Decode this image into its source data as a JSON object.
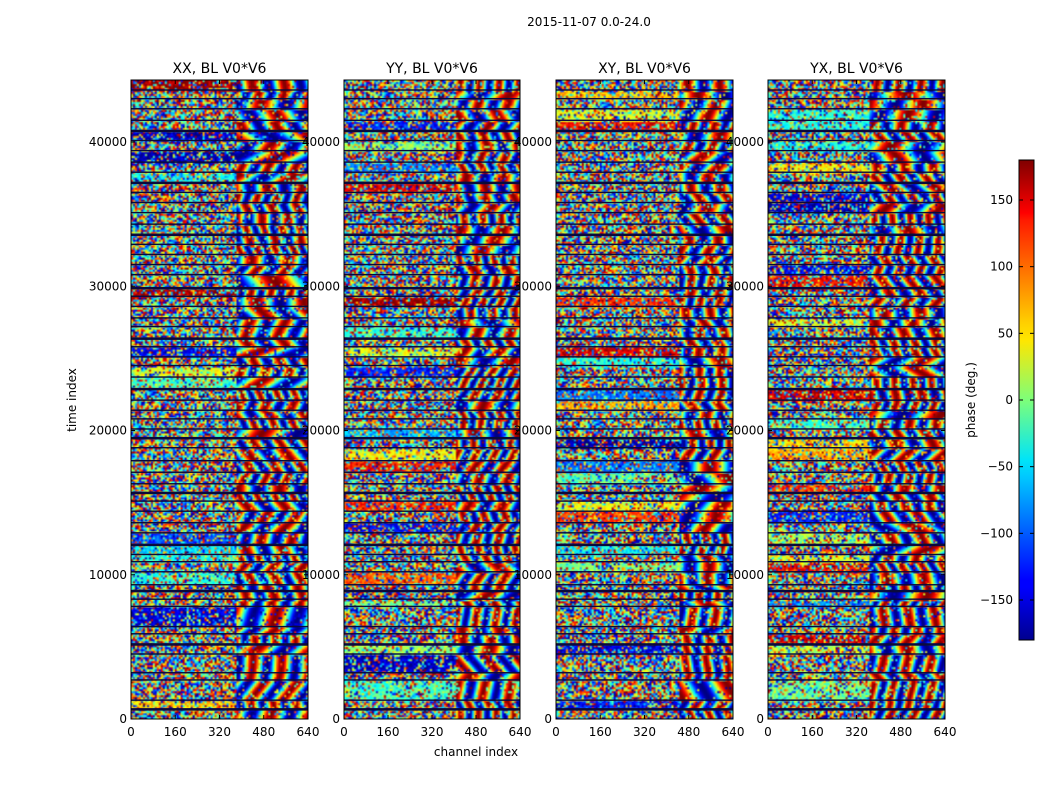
{
  "figure_title": "2015-11-07 0.0-24.0",
  "chart_data": {
    "type": "heatmap",
    "suptitle": "2015-11-07 0.0-24.0",
    "xlabel": "channel index",
    "ylabel": "time index",
    "xlim": [
      0,
      640
    ],
    "ylim": [
      0,
      44300
    ],
    "xticks": [
      0,
      160,
      320,
      480,
      640
    ],
    "yticks": [
      0,
      10000,
      20000,
      30000,
      40000
    ],
    "xtick_labels": [
      "0",
      "160",
      "320",
      "480",
      "640"
    ],
    "ytick_labels": [
      "0",
      "10000",
      "20000",
      "30000",
      "40000"
    ],
    "panels": [
      {
        "title": "XX, BL V0*V6"
      },
      {
        "title": "YY, BL V0*V6"
      },
      {
        "title": "XY, BL V0*V6"
      },
      {
        "title": "YX, BL V0*V6"
      }
    ],
    "colorbar": {
      "label": "phase (deg.)",
      "range": [
        -180,
        180
      ],
      "ticks": [
        -150,
        -100,
        -50,
        0,
        50,
        100,
        150
      ],
      "tick_labels": [
        "−150",
        "−100",
        "−50",
        "0",
        "50",
        "100",
        "150"
      ],
      "colormap": "jet"
    },
    "band_boundaries": [
      700,
      1300,
      2700,
      3200,
      4500,
      5200,
      5900,
      6400,
      7800,
      8300,
      8900,
      9300,
      10200,
      10900,
      11400,
      12100,
      12900,
      13600,
      14400,
      15100,
      15700,
      16300,
      17100,
      17900,
      18800,
      19500,
      20100,
      20800,
      21400,
      22100,
      22900,
      23700,
      24500,
      25100,
      25800,
      26400,
      27200,
      27800,
      28600,
      29300,
      29900,
      30800,
      31500,
      32200,
      32900,
      33600,
      34300,
      35100,
      35800,
      36500,
      37200,
      37900,
      38600,
      39400,
      40100,
      40800,
      41500,
      42300,
      43000,
      43600
    ],
    "coherent_channel_start": [
      380,
      400,
      440,
      360
    ],
    "grid": false
  }
}
